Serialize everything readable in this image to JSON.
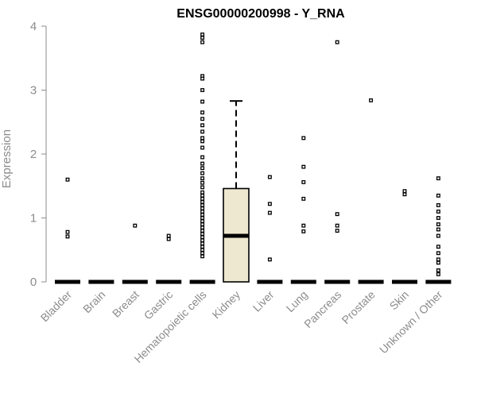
{
  "chart_data": {
    "type": "box",
    "title": "ENSG00000200998 - Y_RNA",
    "xlabel": "",
    "ylabel": "Expression",
    "ylim": [
      0,
      4
    ],
    "yticks": [
      0,
      1,
      2,
      3,
      4
    ],
    "grid": false,
    "colors": {
      "box_fill": "#efe8d0",
      "stroke": "#000000",
      "axis_text": "#8c8c8c"
    },
    "categories": [
      "Bladder",
      "Brain",
      "Breast",
      "Gastric",
      "Hematopoietic cells",
      "Kidney",
      "Liver",
      "Lung",
      "Pancreas",
      "Prostate",
      "Skin",
      "Unknown / Other"
    ],
    "boxes": [
      {
        "category": "Bladder",
        "q1": 0,
        "median": 0,
        "q3": 0,
        "whisker_low": 0,
        "whisker_high": 0,
        "outliers": [
          1.6,
          0.78,
          0.71
        ]
      },
      {
        "category": "Brain",
        "q1": 0,
        "median": 0,
        "q3": 0,
        "whisker_low": 0,
        "whisker_high": 0,
        "outliers": []
      },
      {
        "category": "Breast",
        "q1": 0,
        "median": 0,
        "q3": 0,
        "whisker_low": 0,
        "whisker_high": 0,
        "outliers": [
          0.88
        ]
      },
      {
        "category": "Gastric",
        "q1": 0,
        "median": 0,
        "q3": 0,
        "whisker_low": 0,
        "whisker_high": 0,
        "outliers": [
          0.72,
          0.67
        ]
      },
      {
        "category": "Hematopoietic cells",
        "q1": 0,
        "median": 0,
        "q3": 0,
        "whisker_low": 0,
        "whisker_high": 0,
        "outliers": [
          3.87,
          3.82,
          3.75,
          3.22,
          3.18,
          3.0,
          2.82,
          2.65,
          2.55,
          2.45,
          2.35,
          2.25,
          2.2,
          2.1,
          1.95,
          1.85,
          1.78,
          1.7,
          1.62,
          1.55,
          1.48,
          1.4,
          1.35,
          1.3,
          1.25,
          1.2,
          1.15,
          1.1,
          1.05,
          1.0,
          0.95,
          0.9,
          0.85,
          0.8,
          0.75,
          0.7,
          0.65,
          0.6,
          0.55,
          0.5,
          0.45,
          0.4
        ]
      },
      {
        "category": "Kidney",
        "q1": 0,
        "median": 0.72,
        "q3": 1.46,
        "whisker_low": 0,
        "whisker_high": 2.83,
        "outliers": []
      },
      {
        "category": "Liver",
        "q1": 0,
        "median": 0,
        "q3": 0,
        "whisker_low": 0,
        "whisker_high": 0,
        "outliers": [
          1.64,
          1.22,
          1.08,
          0.35
        ]
      },
      {
        "category": "Lung",
        "q1": 0,
        "median": 0,
        "q3": 0,
        "whisker_low": 0,
        "whisker_high": 0,
        "outliers": [
          2.25,
          1.8,
          1.56,
          1.3,
          0.88,
          0.79
        ]
      },
      {
        "category": "Pancreas",
        "q1": 0,
        "median": 0,
        "q3": 0,
        "whisker_low": 0,
        "whisker_high": 0,
        "outliers": [
          3.75,
          1.06,
          0.88,
          0.8
        ]
      },
      {
        "category": "Prostate",
        "q1": 0,
        "median": 0,
        "q3": 0,
        "whisker_low": 0,
        "whisker_high": 0,
        "outliers": [
          2.84
        ]
      },
      {
        "category": "Skin",
        "q1": 0,
        "median": 0,
        "q3": 0,
        "whisker_low": 0,
        "whisker_high": 0,
        "outliers": [
          1.42,
          1.37
        ]
      },
      {
        "category": "Unknown / Other",
        "q1": 0,
        "median": 0,
        "q3": 0,
        "whisker_low": 0,
        "whisker_high": 0,
        "outliers": [
          1.62,
          1.35,
          1.2,
          1.1,
          1.0,
          0.9,
          0.82,
          0.72,
          0.55,
          0.45,
          0.35,
          0.3,
          0.18,
          0.12
        ]
      }
    ]
  }
}
